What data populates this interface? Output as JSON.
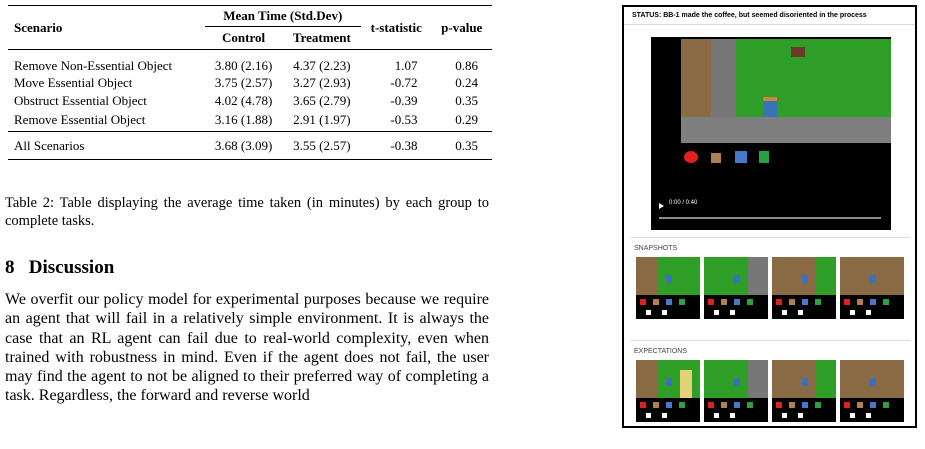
{
  "table": {
    "header": {
      "scenario": "Scenario",
      "mean_time": "Mean Time (Std.Dev)",
      "control": "Control",
      "treatment": "Treatment",
      "t_statistic": "t-statistic",
      "p_value": "p-value"
    },
    "rows": [
      [
        "Remove Non-Essential Object",
        "3.80 (2.16)",
        "4.37 (2.23)",
        "1.07",
        "0.86"
      ],
      [
        "Move Essential Object",
        "3.75 (2.57)",
        "3.27 (2.93)",
        "-0.72",
        "0.24"
      ],
      [
        "Obstruct Essential Object",
        "4.02 (4.78)",
        "3.65 (2.79)",
        "-0.39",
        "0.35"
      ],
      [
        "Remove Essential Object",
        "3.16 (1.88)",
        "2.91 (1.97)",
        "-0.53",
        "0.29"
      ]
    ],
    "total": [
      "All Scenarios",
      "3.68 (3.09)",
      "3.55 (2.57)",
      "-0.38",
      "0.35"
    ]
  },
  "caption": "Table 2: Table displaying the average time taken (in minutes) by each group to complete tasks.",
  "section": {
    "number": "8",
    "title": "Discussion"
  },
  "paragraph": "We overfit our policy model for experimental purposes because we require an agent that will fail in a relatively simple environment. It is always the case that an RL agent can fail due to real-world complexity, even when trained with robustness in mind. Even if the agent does not fail, the user may find the agent to not be aligned to their preferred way of completing a task. Regardless, the forward and reverse world",
  "panel": {
    "status": "STATUS: BB-1 made the coffee, but seemed disoriented in the process",
    "video_time": "0:00 / 0:40",
    "snapshots_label": "SNAPSHOTS",
    "expectations_label": "EXPECTATIONS"
  }
}
